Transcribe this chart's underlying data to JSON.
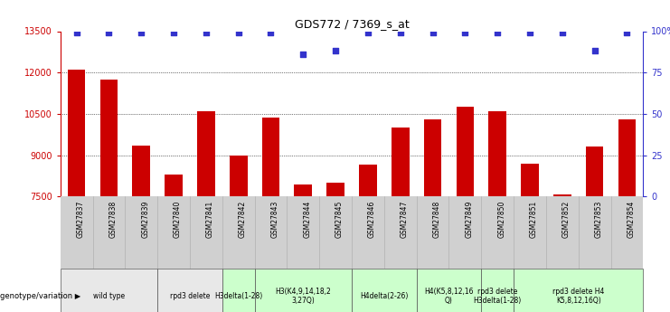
{
  "title": "GDS772 / 7369_s_at",
  "samples": [
    "GSM27837",
    "GSM27838",
    "GSM27839",
    "GSM27840",
    "GSM27841",
    "GSM27842",
    "GSM27843",
    "GSM27844",
    "GSM27845",
    "GSM27846",
    "GSM27847",
    "GSM27848",
    "GSM27849",
    "GSM27850",
    "GSM27851",
    "GSM27852",
    "GSM27853",
    "GSM27854"
  ],
  "counts": [
    12100,
    11750,
    9350,
    8300,
    10600,
    9000,
    10350,
    7950,
    7990,
    8650,
    10000,
    10300,
    10750,
    10600,
    8700,
    7570,
    9300,
    10300
  ],
  "percentile_ranks": [
    99,
    99,
    99,
    99,
    99,
    99,
    99,
    86,
    88,
    99,
    99,
    99,
    99,
    99,
    99,
    99,
    88,
    99
  ],
  "ylim_left": [
    7500,
    13500
  ],
  "ylim_right": [
    0,
    100
  ],
  "yticks_left": [
    7500,
    9000,
    10500,
    12000,
    13500
  ],
  "yticks_right": [
    0,
    25,
    50,
    75,
    100
  ],
  "ytick_labels_right": [
    "0",
    "25",
    "50",
    "75",
    "100%"
  ],
  "bar_color": "#cc0000",
  "dot_color": "#3333cc",
  "groups": [
    {
      "label": "wild type",
      "start": 0,
      "end": 2,
      "color": "#e8e8e8"
    },
    {
      "label": "rpd3 delete",
      "start": 3,
      "end": 4,
      "color": "#e8e8e8"
    },
    {
      "label": "H3delta(1-28)",
      "start": 5,
      "end": 5,
      "color": "#ccffcc"
    },
    {
      "label": "H3(K4,9,14,18,2\n3,27Q)",
      "start": 6,
      "end": 8,
      "color": "#ccffcc"
    },
    {
      "label": "H4delta(2-26)",
      "start": 9,
      "end": 10,
      "color": "#ccffcc"
    },
    {
      "label": "H4(K5,8,12,16\nQ)",
      "start": 11,
      "end": 12,
      "color": "#ccffcc"
    },
    {
      "label": "rpd3 delete\nH3delta(1-28)",
      "start": 13,
      "end": 13,
      "color": "#ccffcc"
    },
    {
      "label": "rpd3 delete H4\nK5,8,12,16Q)",
      "start": 14,
      "end": 17,
      "color": "#ccffcc"
    }
  ],
  "bar_width": 0.55,
  "dot_size": 18
}
